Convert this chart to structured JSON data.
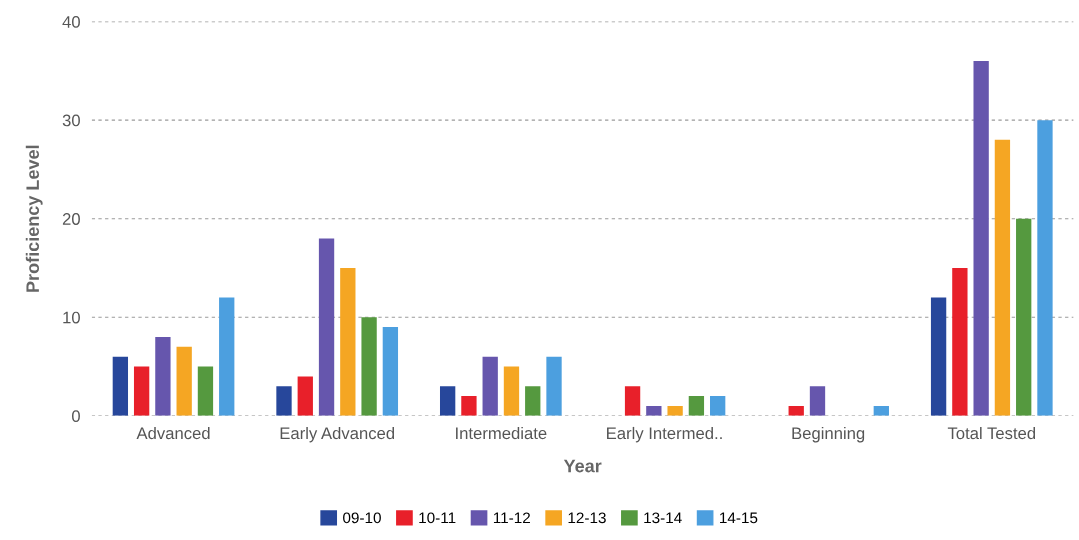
{
  "chart_data": {
    "type": "bar",
    "xlabel": "Year",
    "ylabel": "Proficiency Level",
    "categories": [
      "Advanced",
      "Early Advanced",
      "Intermediate",
      "Early Intermed..",
      "Beginning",
      "Total Tested"
    ],
    "series": [
      {
        "name": "09-10",
        "color": "#27479b",
        "values": [
          6,
          3,
          3,
          0,
          0,
          12
        ]
      },
      {
        "name": "10-11",
        "color": "#e8202a",
        "values": [
          5,
          4,
          2,
          3,
          1,
          15
        ]
      },
      {
        "name": "11-12",
        "color": "#6656ad",
        "values": [
          8,
          18,
          6,
          1,
          3,
          36
        ]
      },
      {
        "name": "12-13",
        "color": "#f5a623",
        "values": [
          7,
          15,
          5,
          1,
          0,
          28
        ]
      },
      {
        "name": "13-14",
        "color": "#55993f",
        "values": [
          5,
          10,
          3,
          2,
          0,
          20
        ]
      },
      {
        "name": "14-15",
        "color": "#4c9fdf",
        "values": [
          12,
          9,
          6,
          2,
          1,
          30
        ]
      }
    ],
    "ylim": [
      0,
      40
    ],
    "yticks": [
      0,
      10,
      20,
      30,
      40
    ],
    "grid": "y",
    "legend": "bottom"
  }
}
